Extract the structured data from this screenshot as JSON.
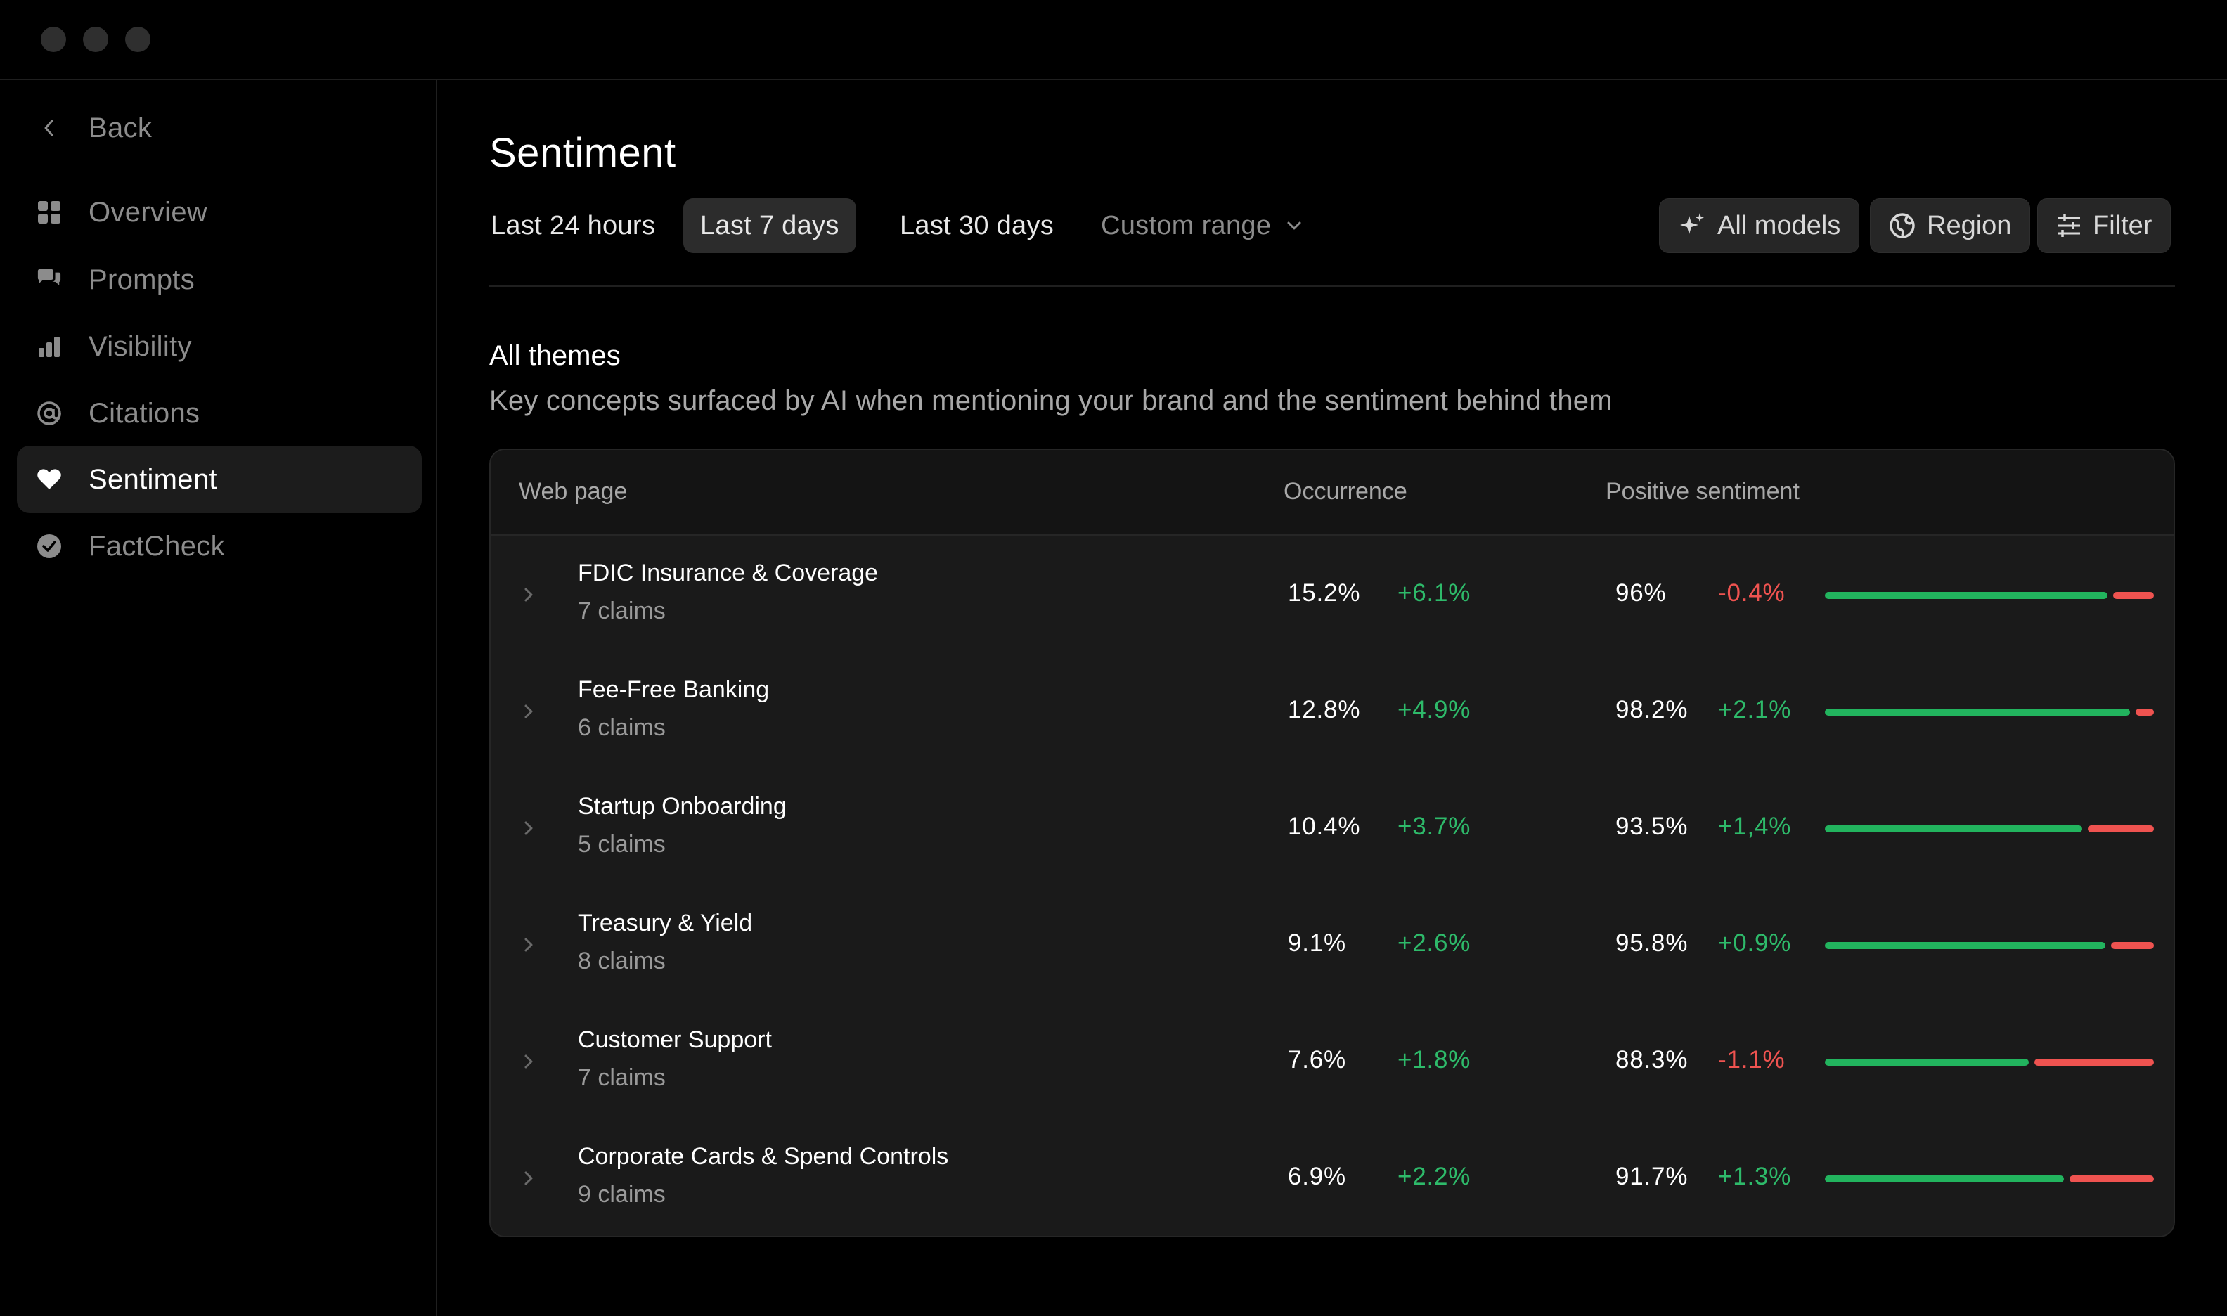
{
  "sidebar": {
    "back_label": "Back",
    "items": [
      {
        "label": "Overview",
        "icon": "grid-icon"
      },
      {
        "label": "Prompts",
        "icon": "chat-bubbles-icon"
      },
      {
        "label": "Visibility",
        "icon": "bar-chart-icon"
      },
      {
        "label": "Citations",
        "icon": "at-sign-icon"
      },
      {
        "label": "Sentiment",
        "icon": "heart-icon",
        "active": true
      },
      {
        "label": "FactCheck",
        "icon": "check-badge-icon"
      }
    ]
  },
  "header": {
    "title": "Sentiment",
    "ranges": [
      "Last 24 hours",
      "Last 7 days",
      "Last 30 days",
      "Custom range"
    ],
    "active_range": "Last 7 days",
    "tools": {
      "models_label": "All models",
      "region_label": "Region",
      "filter_label": "Filter"
    }
  },
  "section": {
    "title": "All themes",
    "subtitle": "Key concepts surfaced by AI when mentioning your brand and the sentiment behind them"
  },
  "table": {
    "columns": [
      "Web page",
      "Occurrence",
      "Positive sentiment"
    ],
    "rows": [
      {
        "title": "FDIC Insurance & Coverage",
        "claims": "7 claims",
        "occurrence": "15.2%",
        "occurrence_delta": "+6.1%",
        "positive": "96%",
        "positive_delta": "-0.4%",
        "positive_share": 0.96
      },
      {
        "title": "Fee-Free Banking",
        "claims": "6 claims",
        "occurrence": "12.8%",
        "occurrence_delta": "+4.9%",
        "positive": "98.2%",
        "positive_delta": "+2.1%",
        "positive_share": 0.982
      },
      {
        "title": "Startup Onboarding",
        "claims": "5 claims",
        "occurrence": "10.4%",
        "occurrence_delta": "+3.7%",
        "positive": "93.5%",
        "positive_delta": "+1,4%",
        "positive_share": 0.935
      },
      {
        "title": "Treasury & Yield",
        "claims": "8 claims",
        "occurrence": "9.1%",
        "occurrence_delta": "+2.6%",
        "positive": "95.8%",
        "positive_delta": "+0.9%",
        "positive_share": 0.958
      },
      {
        "title": "Customer Support",
        "claims": "7 claims",
        "occurrence": "7.6%",
        "occurrence_delta": "+1.8%",
        "positive": "88.3%",
        "positive_delta": "-1.1%",
        "positive_share": 0.883
      },
      {
        "title": "Corporate Cards & Spend Controls",
        "claims": "9 claims",
        "occurrence": "6.9%",
        "occurrence_delta": "+2.2%",
        "positive": "91.7%",
        "positive_delta": "+1.3%",
        "positive_share": 0.917
      }
    ]
  },
  "colors": {
    "positive": "#2eba6a",
    "negative": "#ef5350",
    "bar_positive": "#22b45e",
    "bar_negative": "#ef5350"
  }
}
